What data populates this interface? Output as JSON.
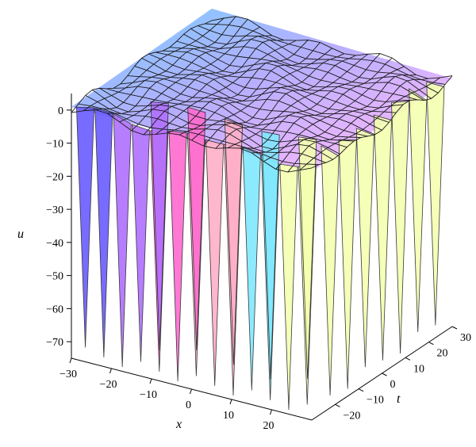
{
  "chart_data": {
    "type": "surface3d",
    "title": "",
    "xlabel": "x",
    "ylabel": "t",
    "zlabel": "u",
    "xlim": [
      -30,
      30
    ],
    "ylim": [
      -30,
      30
    ],
    "zlim": [
      -75,
      5
    ],
    "x_ticks": [
      -30,
      -20,
      -10,
      0,
      10,
      20
    ],
    "x_tick_labels": [
      "−30",
      "−20",
      "−10",
      "0",
      "10",
      "20"
    ],
    "y_ticks": [
      -20,
      -10,
      0,
      10,
      20,
      30
    ],
    "y_tick_labels": [
      "−20",
      "−10",
      "0",
      "10",
      "20",
      "30"
    ],
    "z_ticks": [
      0,
      -10,
      -20,
      -30,
      -40,
      -50,
      -60,
      -70
    ],
    "z_tick_labels": [
      "0",
      "−10",
      "−20",
      "−30",
      "−40",
      "−50",
      "−60",
      "−70"
    ],
    "surface": {
      "baseline": 0,
      "spike_depth": -72,
      "spike_count": 13,
      "grid_resolution": 20,
      "colormap": [
        "#6a5cff",
        "#b070ff",
        "#ff6ad0",
        "#ffb0c8",
        "#80e8ff",
        "#f4ffb0"
      ]
    }
  }
}
